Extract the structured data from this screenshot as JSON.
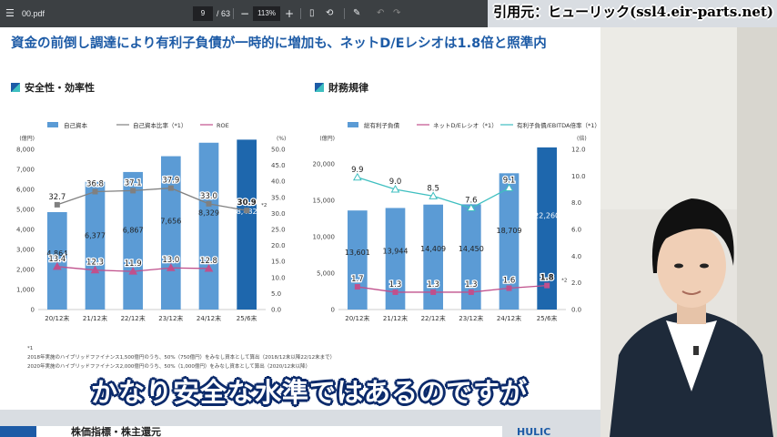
{
  "viewer": {
    "file_name": "00.pdf",
    "page_current": "9",
    "page_total": "/ 63",
    "zoom": "113%",
    "icons": [
      "menu-icon",
      "zoom-out-icon",
      "zoom-in-icon",
      "fit-page-icon",
      "rotate-icon",
      "annotate-icon",
      "undo-icon",
      "redo-icon"
    ]
  },
  "slide": {
    "title": "資金の前倒し調達により有利子負債が一時的に増加も、ネットD/Eレシオは1.8倍と照準内",
    "left_section": "安全性・効率性",
    "right_section": "財務規律",
    "notes": [
      "*1",
      "2018年実施のハイブリッドファイナンス1,500億円のうち、50%（750億円）をみなし資本として算出（2018/12末以降22/12末まで）",
      "2020年実施のハイブリッドファイナンス2,000億円のうち、50%（1,000億円）をみなし資本として算出（2020/12末以降）"
    ],
    "next_slide_title": "株価指標・株主還元",
    "logo_text": "HULIC"
  },
  "caption": "かなり安全な水準ではあるのですが",
  "credit": "引用元：ヒューリック(ssl4.eir-parts.net)",
  "colors": {
    "bar": "#5b9bd5",
    "bar_last": "#1e67ad",
    "gray_line": "#808080",
    "roe_line": "#c0508c",
    "ebitda_line": "#3fbfc0",
    "title": "#1d5ba6",
    "caption_outline": "#0b2a6b"
  },
  "chart_data": [
    {
      "type": "bar",
      "categories": [
        "20/12末",
        "21/12末",
        "22/12末",
        "23/12末",
        "24/12末",
        "25/6末"
      ],
      "series": [
        {
          "name": "自己資本",
          "kind": "bar",
          "axis": "left",
          "values": [
            4864,
            6377,
            6867,
            7656,
            8329,
            8482
          ],
          "labels": [
            "4,864",
            "6,377",
            "6,867",
            "7,656",
            "8,329",
            "8,482"
          ]
        },
        {
          "name": "自己資本比率（*1）",
          "kind": "line",
          "axis": "right",
          "values": [
            32.7,
            36.8,
            37.1,
            37.9,
            33.0,
            30.9
          ],
          "labels": [
            "32.7",
            "36.8",
            "37.1",
            "37.9",
            "33.0",
            "30.9"
          ]
        },
        {
          "name": "ROE",
          "kind": "line",
          "axis": "right",
          "values": [
            13.4,
            12.3,
            11.9,
            13.0,
            12.8,
            null
          ],
          "labels": [
            "13.4",
            "12.3",
            "11.9",
            "13.0",
            "12.8",
            ""
          ]
        }
      ],
      "left_unit": "(億円)",
      "right_unit": "(%)",
      "ylim": [
        0,
        8000
      ],
      "y2lim": [
        0,
        50
      ],
      "yticks": [
        "0",
        "1,000",
        "2,000",
        "3,000",
        "4,000",
        "5,000",
        "6,000",
        "7,000",
        "8,000"
      ],
      "y2ticks": [
        "0.0",
        "5.0",
        "10.0",
        "15.0",
        "20.0",
        "25.0",
        "30.0",
        "35.0",
        "40.0",
        "45.0",
        "50.0"
      ],
      "annotation": "*2"
    },
    {
      "type": "bar",
      "categories": [
        "20/12末",
        "21/12末",
        "22/12末",
        "23/12末",
        "24/12末",
        "25/6末"
      ],
      "series": [
        {
          "name": "総有利子負債",
          "kind": "bar",
          "axis": "left",
          "values": [
            13601,
            13944,
            14409,
            14450,
            18709,
            22260
          ],
          "labels": [
            "13,601",
            "13,944",
            "14,409",
            "14,450",
            "18,709",
            "22,260"
          ]
        },
        {
          "name": "ネットD/Eレシオ（*1）",
          "kind": "line",
          "axis": "right",
          "values": [
            1.7,
            1.3,
            1.3,
            1.3,
            1.6,
            1.8
          ],
          "labels": [
            "1.7",
            "1.3",
            "1.3",
            "1.3",
            "1.6",
            "1.8"
          ]
        },
        {
          "name": "有利子負債/EBITDA倍率（*1）",
          "kind": "line",
          "axis": "right",
          "values": [
            9.9,
            9.0,
            8.5,
            7.6,
            9.1,
            null
          ],
          "labels": [
            "9.9",
            "9.0",
            "8.5",
            "7.6",
            "9.1",
            ""
          ]
        }
      ],
      "left_unit": "(億円)",
      "right_unit": "(倍)",
      "ylim": [
        0,
        22000
      ],
      "y2lim": [
        0,
        12
      ],
      "yticks": [
        "0",
        "5,000",
        "10,000",
        "15,000",
        "20,000"
      ],
      "y2ticks": [
        "0.0",
        "2.0",
        "4.0",
        "6.0",
        "8.0",
        "10.0",
        "12.0"
      ],
      "annotation": "*2"
    }
  ]
}
